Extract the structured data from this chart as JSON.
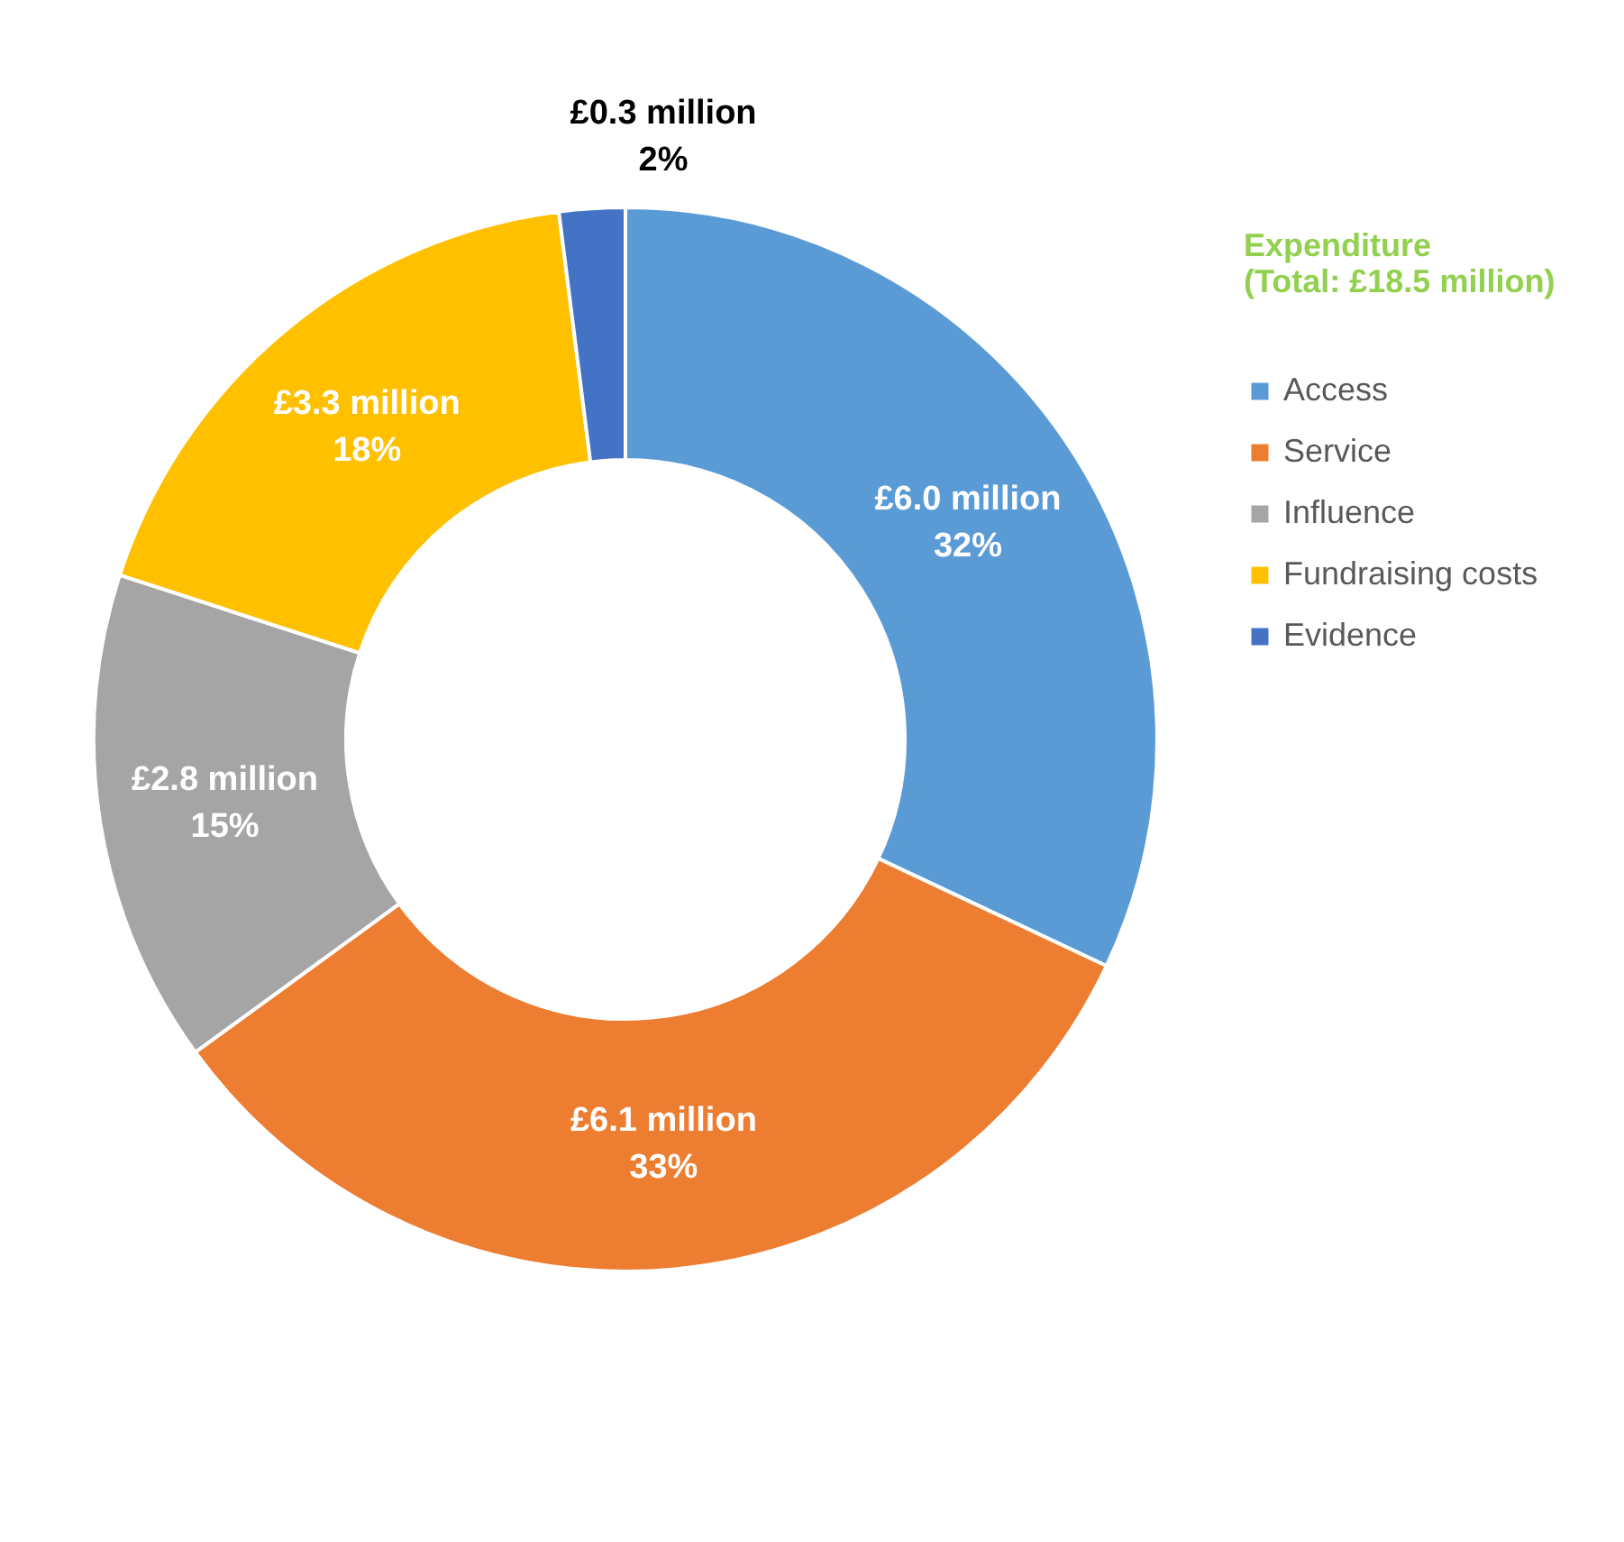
{
  "chart_data": {
    "type": "donut",
    "legend_title": "Expenditure\n(Total: £18.5 million)",
    "legend": "right",
    "categories": [
      "Access",
      "Service",
      "Influence",
      "Fundraising costs",
      "Evidence"
    ],
    "values": [
      32,
      33,
      15,
      18,
      2
    ],
    "colors": [
      "#5b9bd5",
      "#ed7d31",
      "#a5a5a5",
      "#ffc000",
      "#4472c4"
    ],
    "value_labels": [
      "32%",
      "33%",
      "15%",
      "18%",
      "2%"
    ],
    "annotations": [
      {
        "text": "£6.0 million",
        "x": "Access"
      },
      {
        "text": "£6.1 million",
        "x": "Service"
      },
      {
        "text": "£2.8 million",
        "x": "Influence"
      },
      {
        "text": "£3.3 million",
        "x": "Fundraising costs"
      },
      {
        "text": "£0.3 million",
        "x": "Evidence"
      }
    ]
  }
}
